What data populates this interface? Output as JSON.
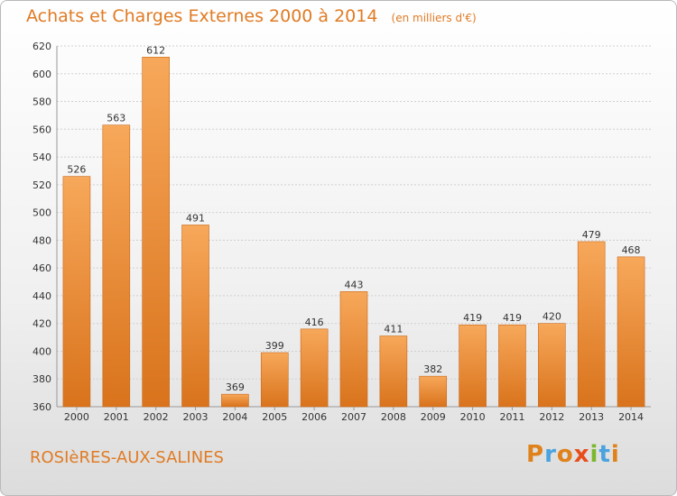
{
  "chart_data": {
    "type": "bar",
    "title": "Achats et Charges Externes 2000 à 2014",
    "subtitle": "(en milliers d'€)",
    "categories": [
      "2000",
      "2001",
      "2002",
      "2003",
      "2004",
      "2005",
      "2006",
      "2007",
      "2008",
      "2009",
      "2010",
      "2011",
      "2012",
      "2013",
      "2014"
    ],
    "values": [
      526,
      563,
      612,
      491,
      369,
      399,
      416,
      443,
      411,
      382,
      419,
      419,
      420,
      479,
      468
    ],
    "ylim": [
      360,
      620
    ],
    "yticks": [
      360,
      380,
      400,
      420,
      440,
      460,
      480,
      500,
      520,
      540,
      560,
      580,
      600,
      620
    ],
    "grid": true,
    "colors": {
      "bar_top": "#f7a85a",
      "bar_bottom": "#d9731c",
      "bar_shade": "#c9681a",
      "grid": "#d0d0d0"
    }
  },
  "footer": {
    "commune": "ROSIèRES-AUX-SALINES",
    "logo": "Proxiti",
    "logo_colors": [
      "#e0821c",
      "#4aa3df",
      "#e0821c",
      "#e84e1b",
      "#7cb82f",
      "#4aa3df",
      "#e0821c"
    ]
  }
}
